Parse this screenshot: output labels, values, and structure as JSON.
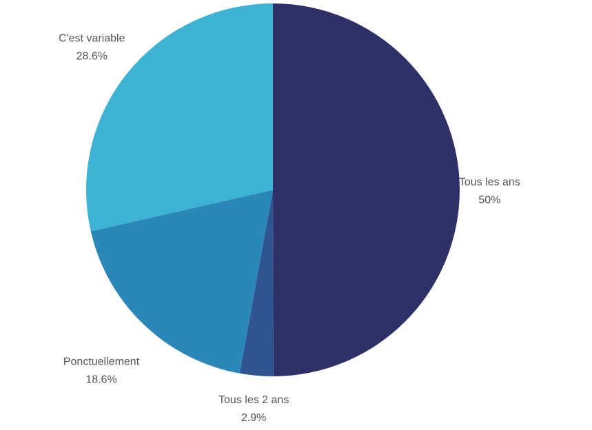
{
  "chart_data": {
    "type": "pie",
    "title": "",
    "slices": [
      {
        "label": "Tous les ans",
        "value": 50,
        "value_label": "50%",
        "color": "#2e3168"
      },
      {
        "label": "Tous les 2 ans",
        "value": 2.9,
        "value_label": "2.9%",
        "color": "#2e5592"
      },
      {
        "label": "Ponctuellement",
        "value": 18.6,
        "value_label": "18.6%",
        "color": "#2b87b7"
      },
      {
        "label": "C'est variable",
        "value": 28.6,
        "value_label": "28.6%",
        "color": "#3cb3d5"
      }
    ],
    "legend": "none",
    "labels": "outside"
  }
}
